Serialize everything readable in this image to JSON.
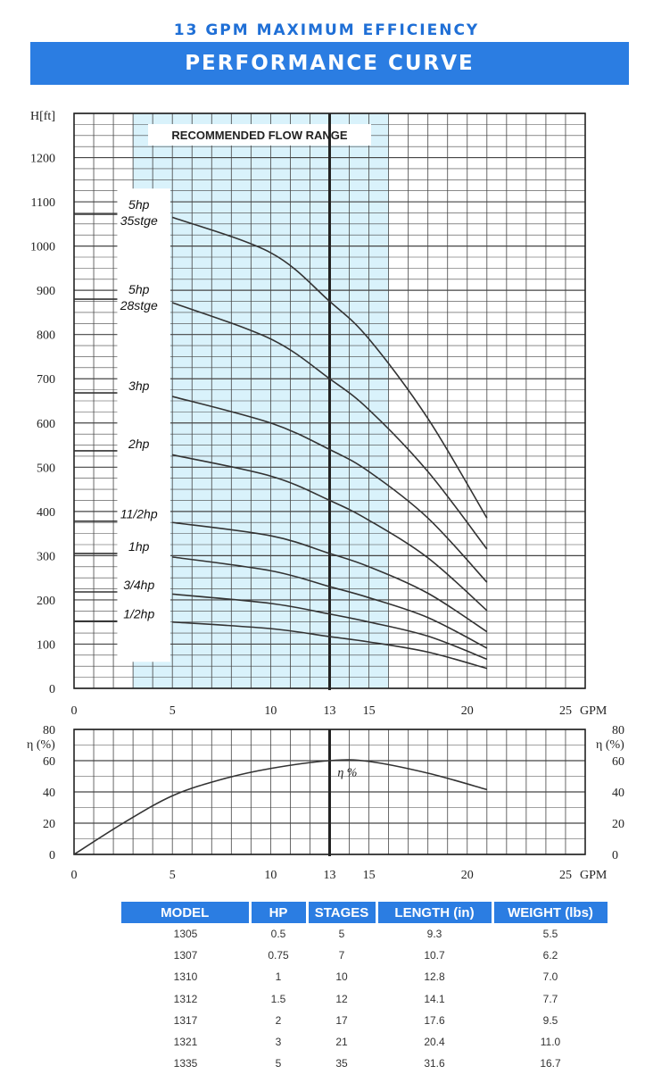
{
  "header": {
    "subtitle": "13 GPM MAXIMUM EFFICIENCY",
    "title": "PERFORMANCE CURVE"
  },
  "colors": {
    "banner": "#2b7de2",
    "subtitle": "#1f6fd6",
    "range_band": "#d9f2fb",
    "curve": "#333333",
    "grid": "#444444"
  },
  "chart_data": [
    {
      "type": "line",
      "ylabel": "H[ft]",
      "xlabel": "GPM",
      "xlim": [
        0,
        26
      ],
      "ylim": [
        0,
        1300
      ],
      "x_ticks": [
        0,
        5,
        10,
        13,
        15,
        20,
        25
      ],
      "y_ticks": [
        0,
        100,
        200,
        300,
        400,
        500,
        600,
        700,
        800,
        900,
        1000,
        1100,
        1200
      ],
      "grid": true,
      "band_label": "RECOMMENDED FLOW RANGE",
      "band_range": [
        3,
        16
      ],
      "marker_x": 13,
      "series": [
        {
          "name": "1/2hp",
          "shutoff": 152,
          "points": [
            [
              5,
              150
            ],
            [
              10,
              135
            ],
            [
              13,
              117
            ],
            [
              15,
              105
            ],
            [
              18,
              82
            ],
            [
              21,
              45
            ]
          ]
        },
        {
          "name": "3/4hp",
          "shutoff": 218,
          "points": [
            [
              5,
              213
            ],
            [
              10,
              192
            ],
            [
              13,
              168
            ],
            [
              15,
              150
            ],
            [
              18,
              118
            ],
            [
              21,
              66
            ]
          ]
        },
        {
          "name": "1hp",
          "shutoff": 305,
          "points": [
            [
              5,
              297
            ],
            [
              10,
              266
            ],
            [
              13,
              230
            ],
            [
              15,
              205
            ],
            [
              18,
              160
            ],
            [
              21,
              91
            ]
          ]
        },
        {
          "name": "11/2hp",
          "shutoff": 378,
          "points": [
            [
              5,
              375
            ],
            [
              10,
              345
            ],
            [
              13,
              305
            ],
            [
              15,
              275
            ],
            [
              18,
              215
            ],
            [
              21,
              128
            ]
          ]
        },
        {
          "name": "2hp",
          "shutoff": 537,
          "points": [
            [
              5,
              528
            ],
            [
              10,
              480
            ],
            [
              13,
              425
            ],
            [
              15,
              380
            ],
            [
              18,
              295
            ],
            [
              21,
              176
            ]
          ]
        },
        {
          "name": "3hp",
          "shutoff": 668,
          "points": [
            [
              5,
              660
            ],
            [
              10,
              600
            ],
            [
              13,
              540
            ],
            [
              15,
              490
            ],
            [
              18,
              385
            ],
            [
              21,
              240
            ]
          ]
        },
        {
          "name": "5hp 28stge",
          "label_line1": "5hp",
          "label_line2": "28stge",
          "shutoff": 880,
          "points": [
            [
              5,
              872
            ],
            [
              10,
              790
            ],
            [
              13,
              700
            ],
            [
              15,
              630
            ],
            [
              18,
              490
            ],
            [
              21,
              315
            ]
          ]
        },
        {
          "name": "5hp 35stge",
          "label_line1": "5hp",
          "label_line2": "35stge",
          "shutoff": 1072,
          "points": [
            [
              5,
              1065
            ],
            [
              10,
              985
            ],
            [
              13,
              875
            ],
            [
              15,
              790
            ],
            [
              18,
              610
            ],
            [
              21,
              385
            ]
          ]
        }
      ]
    },
    {
      "type": "line",
      "ylabel": "η (%)",
      "xlabel": "GPM",
      "xlim": [
        0,
        26
      ],
      "ylim": [
        0,
        80
      ],
      "x_ticks": [
        0,
        5,
        10,
        13,
        15,
        20,
        25
      ],
      "y_ticks": [
        0,
        20,
        40,
        60,
        80
      ],
      "grid": true,
      "marker_x": 13,
      "series": [
        {
          "name": "η %",
          "points": [
            [
              0,
              0
            ],
            [
              2.5,
              20
            ],
            [
              5,
              37.5
            ],
            [
              7.5,
              48
            ],
            [
              10,
              55
            ],
            [
              13,
              60
            ],
            [
              15,
              59.5
            ],
            [
              18,
              52
            ],
            [
              21,
              41.5
            ]
          ]
        }
      ]
    }
  ],
  "table": {
    "headers": [
      "MODEL",
      "HP",
      "STAGES",
      "LENGTH (in)",
      "WEIGHT (lbs)"
    ],
    "rows": [
      [
        "1305",
        "0.5",
        "5",
        "9.3",
        "5.5"
      ],
      [
        "1307",
        "0.75",
        "7",
        "10.7",
        "6.2"
      ],
      [
        "1310",
        "1",
        "10",
        "12.8",
        "7.0"
      ],
      [
        "1312",
        "1.5",
        "12",
        "14.1",
        "7.7"
      ],
      [
        "1317",
        "2",
        "17",
        "17.6",
        "9.5"
      ],
      [
        "1321",
        "3",
        "21",
        "20.4",
        "11.0"
      ],
      [
        "1335",
        "5",
        "35",
        "31.6",
        "16.7"
      ]
    ]
  }
}
